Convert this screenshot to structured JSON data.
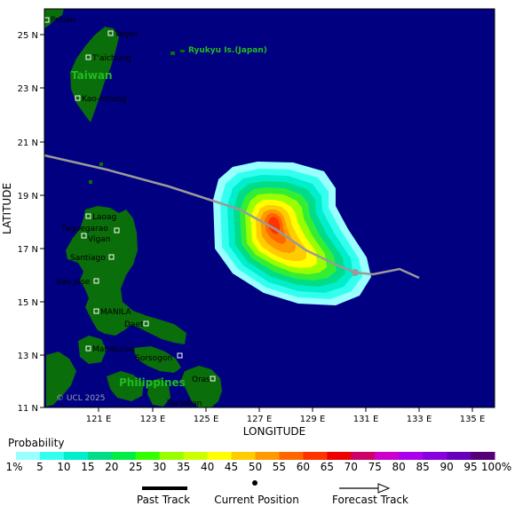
{
  "map": {
    "colors": {
      "ocean": "#000080",
      "land": "#0a6e0a",
      "track": "#9a9a9a",
      "city_box": "#ffffff",
      "region_text": "#22bb22"
    },
    "axes": {
      "x_title": "LONGITUDE",
      "y_title": "LATITUDE",
      "lon_ticks": [
        "121 E",
        "123 E",
        "125 E",
        "127 E",
        "129 E",
        "131 E",
        "133 E",
        "135 E"
      ],
      "lat_ticks": [
        "25 N",
        "23 N",
        "21 N",
        "19 N",
        "17 N",
        "15 N",
        "13 N",
        "11 N"
      ]
    },
    "regions": [
      {
        "name": "Taiwan"
      },
      {
        "name": "Ryukyu Is.(Japan)"
      },
      {
        "name": "Philippines"
      }
    ],
    "cities": [
      {
        "name": "Putian"
      },
      {
        "name": "Taipei"
      },
      {
        "name": "T'aichung"
      },
      {
        "name": "Kao-hsiung"
      },
      {
        "name": "Laoag"
      },
      {
        "name": "Tuguegarao"
      },
      {
        "name": "Vigan"
      },
      {
        "name": "Santiago"
      },
      {
        "name": "San Jose"
      },
      {
        "name": "MANILA"
      },
      {
        "name": "Daet"
      },
      {
        "name": "Mamburao"
      },
      {
        "name": "Sorsogon"
      },
      {
        "name": "Oras"
      },
      {
        "name": "Tacloban"
      }
    ],
    "copyright": "© UCL 2025"
  },
  "probability_legend": {
    "title": "Probability",
    "labels": [
      "1%",
      "5",
      "10",
      "15",
      "20",
      "25",
      "30",
      "35",
      "40",
      "45",
      "50",
      "55",
      "60",
      "65",
      "70",
      "75",
      "80",
      "85",
      "90",
      "95",
      "100%"
    ],
    "colors": [
      "#99ffff",
      "#33ffee",
      "#00eecc",
      "#00dd88",
      "#00ee44",
      "#33ff00",
      "#99ff00",
      "#ccff00",
      "#ffff00",
      "#ffcc00",
      "#ff9900",
      "#ff6600",
      "#ff3300",
      "#ee0000",
      "#cc0066",
      "#cc00cc",
      "#aa00ee",
      "#8800dd",
      "#6600bb",
      "#550077"
    ]
  },
  "track_legend": {
    "past": "Past Track",
    "current": "Current Position",
    "forecast": "Forecast Track"
  }
}
